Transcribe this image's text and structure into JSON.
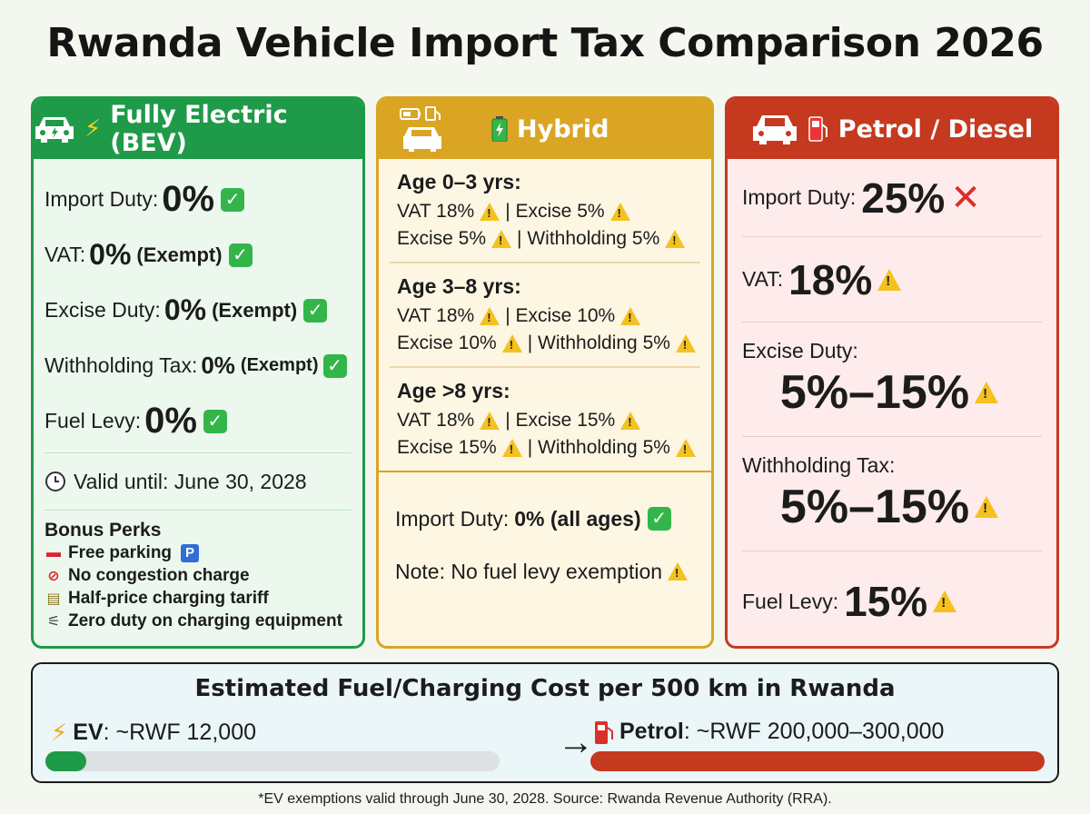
{
  "title": "Rwanda Vehicle Import Tax Comparison 2026",
  "colors": {
    "bev": "#1f9a49",
    "hybrid": "#d9a523",
    "petrol": "#c5391f",
    "warning": "#f5c11e",
    "check": "#33b54a"
  },
  "bev": {
    "header": "Fully Electric (BEV)",
    "rows": [
      {
        "label": "Import Duty:",
        "value": "0%",
        "note": ""
      },
      {
        "label": "VAT:",
        "value": "0%",
        "note": "(Exempt)"
      },
      {
        "label": "Excise Duty:",
        "value": "0%",
        "note": "(Exempt)"
      },
      {
        "label": "Withholding Tax:",
        "value": "0%",
        "note": "(Exempt)"
      },
      {
        "label": "Fuel Levy:",
        "value": "0%",
        "note": ""
      }
    ],
    "valid_until": "Valid until: June 30, 2028",
    "perks_title": "Bonus Perks",
    "perks": [
      "Free parking",
      "No congestion charge",
      "Half-price charging tariff",
      "Zero duty on charging equipment"
    ]
  },
  "hybrid": {
    "header": "Hybrid",
    "groups": [
      {
        "age": "Age 0–3 yrs:",
        "line1a": "VAT 18%",
        "line1b": "| Excise 5%",
        "line2a": "Excise 5%",
        "line2b": "| Withholding 5%"
      },
      {
        "age": "Age 3–8 yrs:",
        "line1a": "VAT 18%",
        "line1b": "| Excise 10%",
        "line2a": "Excise 10%",
        "line2b": "| Withholding 5%"
      },
      {
        "age": "Age >8 yrs:",
        "line1a": "VAT 18%",
        "line1b": "| Excise 15%",
        "line2a": "Excise 15%",
        "line2b": "| Withholding 5%"
      }
    ],
    "import_duty_label": "Import Duty:",
    "import_duty_value": "0% (all ages)",
    "note": "Note: No fuel levy exemption"
  },
  "petrol": {
    "header": "Petrol / Diesel",
    "import_duty_label": "Import Duty:",
    "import_duty_value": "25%",
    "vat_label": "VAT:",
    "vat_value": "18%",
    "excise_label": "Excise Duty:",
    "excise_value": "5%–15%",
    "withholding_label": "Withholding Tax:",
    "withholding_value": "5%–15%",
    "fuel_levy_label": "Fuel Levy:",
    "fuel_levy_value": "15%"
  },
  "cost": {
    "title": "Estimated Fuel/Charging Cost per 500 km in Rwanda",
    "ev_label": "EV",
    "ev_value": ": ~RWF 12,000",
    "ev_fill_fraction": 0.09,
    "petrol_label": "Petrol",
    "petrol_value": ": ~RWF 200,000–300,000",
    "petrol_fill_fraction": 1.0
  },
  "footnote": "*EV exemptions valid through June 30, 2028. Source: Rwanda Revenue Authority (RRA)."
}
